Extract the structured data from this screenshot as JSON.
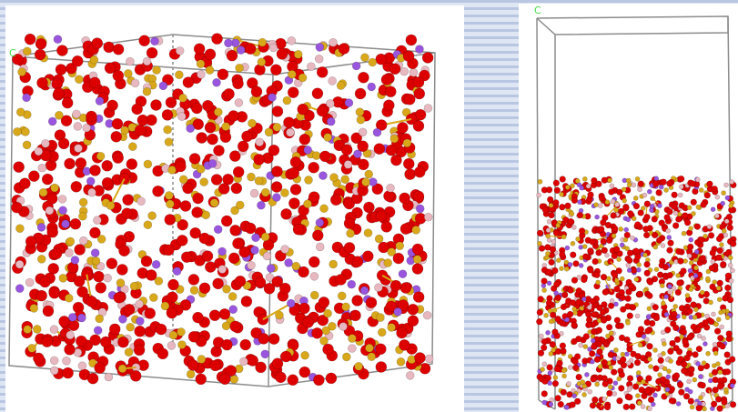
{
  "panels": [
    {
      "axis_label": "C"
    },
    {
      "axis_label": "C"
    }
  ]
}
